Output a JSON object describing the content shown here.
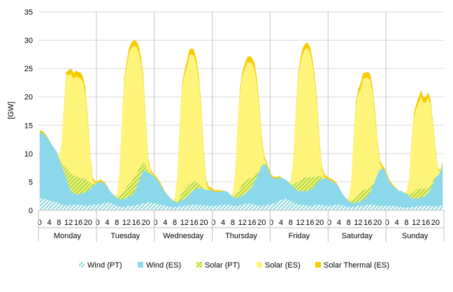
{
  "chart_data": {
    "type": "area",
    "stacked": true,
    "ylabel": "[GW]",
    "ylim": [
      0,
      35
    ],
    "yticks": [
      0,
      5,
      10,
      15,
      20,
      25,
      30,
      35
    ],
    "grid": "horizontal",
    "legend_position": "bottom",
    "days": [
      "Monday",
      "Tuesday",
      "Wednesday",
      "Thursday",
      "Friday",
      "Saturday",
      "Sunday"
    ],
    "hour_labels": [
      "0",
      "4",
      "8",
      "12",
      "16",
      "20"
    ],
    "hours_per_day": 24,
    "series": [
      {
        "name": "Wind (PT)",
        "color": "#8ad8da",
        "pattern": "hatch",
        "values": [
          2.0,
          2.1,
          2.0,
          1.9,
          1.8,
          1.6,
          1.5,
          1.4,
          1.2,
          1.0,
          0.9,
          0.8,
          0.8,
          0.9,
          1.0,
          1.0,
          1.0,
          0.9,
          0.9,
          0.8,
          0.8,
          0.9,
          1.0,
          1.0,
          1.0,
          1.1,
          1.2,
          1.3,
          1.4,
          1.3,
          1.2,
          1.0,
          0.8,
          0.7,
          0.6,
          0.6,
          0.7,
          0.8,
          0.8,
          0.8,
          0.9,
          1.0,
          1.1,
          1.2,
          1.3,
          1.4,
          1.4,
          1.3,
          1.2,
          1.1,
          1.0,
          0.9,
          0.8,
          0.7,
          0.6,
          0.6,
          0.6,
          0.6,
          0.7,
          0.8,
          0.8,
          0.9,
          0.9,
          1.0,
          1.0,
          1.0,
          0.9,
          0.9,
          0.8,
          0.8,
          0.8,
          0.8,
          0.8,
          0.8,
          0.9,
          0.9,
          1.0,
          1.0,
          1.0,
          0.9,
          0.8,
          0.8,
          0.8,
          0.9,
          1.0,
          1.1,
          1.2,
          1.2,
          1.1,
          1.0,
          0.9,
          0.8,
          0.8,
          0.8,
          0.9,
          1.0,
          1.0,
          1.2,
          1.4,
          1.6,
          1.8,
          2.0,
          2.0,
          1.8,
          1.6,
          1.4,
          1.2,
          1.0,
          1.0,
          1.0,
          0.9,
          0.8,
          0.8,
          0.8,
          0.9,
          1.0,
          1.0,
          0.9,
          0.8,
          0.8,
          0.8,
          0.8,
          0.9,
          1.0,
          1.0,
          0.9,
          0.8,
          0.7,
          0.6,
          0.6,
          0.6,
          0.7,
          0.8,
          0.8,
          0.8,
          0.9,
          1.0,
          1.0,
          1.0,
          0.9,
          0.8,
          0.8,
          0.8,
          0.8,
          0.8,
          0.8,
          0.8,
          0.8,
          0.7,
          0.6,
          0.6,
          0.5,
          0.5,
          0.5,
          0.6,
          0.6,
          0.7,
          0.7,
          0.8,
          0.8,
          0.8,
          0.8,
          0.7,
          0.7,
          0.7,
          0.7,
          0.8,
          0.8
        ]
      },
      {
        "name": "Wind (ES)",
        "color": "#8ad8ea",
        "pattern": "solid",
        "values": [
          11.8,
          11.6,
          11.4,
          11.0,
          10.5,
          10.0,
          9.5,
          9.0,
          8.0,
          7.0,
          6.0,
          5.0,
          3.5,
          2.5,
          2.0,
          1.8,
          1.8,
          2.0,
          2.2,
          2.4,
          2.6,
          2.8,
          3.2,
          3.6,
          3.8,
          4.0,
          3.8,
          3.4,
          2.8,
          2.2,
          1.8,
          1.6,
          1.4,
          1.3,
          1.3,
          1.4,
          1.5,
          1.6,
          1.8,
          2.2,
          3.0,
          4.0,
          5.0,
          5.8,
          5.6,
          5.2,
          5.0,
          4.8,
          4.6,
          4.2,
          3.6,
          3.0,
          2.4,
          2.0,
          1.6,
          1.2,
          0.9,
          0.8,
          0.8,
          1.0,
          1.2,
          1.4,
          1.8,
          2.2,
          2.6,
          2.8,
          3.0,
          3.0,
          2.9,
          2.8,
          2.8,
          2.8,
          2.6,
          2.4,
          2.4,
          2.4,
          2.4,
          2.4,
          2.2,
          1.8,
          1.6,
          1.4,
          1.4,
          1.4,
          1.6,
          1.8,
          2.0,
          2.4,
          3.0,
          4.0,
          5.0,
          6.0,
          7.0,
          7.4,
          7.0,
          6.0,
          5.0,
          4.4,
          4.2,
          4.2,
          4.0,
          3.6,
          3.4,
          3.2,
          3.0,
          2.8,
          2.6,
          2.4,
          2.4,
          2.4,
          2.5,
          2.6,
          2.8,
          3.0,
          3.4,
          3.8,
          4.2,
          4.6,
          4.8,
          4.8,
          4.6,
          4.4,
          4.0,
          3.6,
          3.0,
          2.4,
          1.8,
          1.4,
          1.0,
          0.8,
          0.7,
          0.6,
          0.6,
          0.8,
          1.0,
          1.2,
          1.6,
          2.2,
          3.2,
          4.4,
          5.6,
          6.4,
          6.6,
          6.2,
          5.2,
          4.2,
          3.6,
          3.2,
          3.0,
          2.8,
          2.8,
          2.6,
          2.4,
          2.0,
          1.6,
          1.4,
          1.4,
          1.4,
          1.4,
          1.6,
          1.8,
          2.2,
          3.0,
          4.0,
          5.0,
          5.4,
          6.0,
          7.4
        ]
      },
      {
        "name": "Solar (PT)",
        "color": "#c8e87a",
        "pattern": "hatch",
        "values": [
          0,
          0,
          0,
          0,
          0,
          0,
          0,
          0,
          0.1,
          0.4,
          1.0,
          2.0,
          2.6,
          3.0,
          3.2,
          3.2,
          3.0,
          2.8,
          2.6,
          2.3,
          1.8,
          1.2,
          0.5,
          0.1,
          0,
          0,
          0,
          0,
          0,
          0,
          0,
          0,
          0.1,
          0.4,
          1.0,
          1.6,
          2.0,
          2.2,
          2.4,
          2.6,
          2.4,
          2.2,
          2.0,
          1.6,
          1.0,
          0.4,
          0.1,
          0,
          0,
          0,
          0,
          0,
          0,
          0,
          0,
          0,
          0.1,
          0.3,
          0.8,
          1.4,
          1.8,
          2.0,
          2.0,
          1.8,
          1.6,
          1.2,
          0.8,
          0.4,
          0.1,
          0,
          0,
          0,
          0,
          0,
          0,
          0,
          0,
          0,
          0,
          0,
          0.1,
          0.4,
          1.0,
          1.6,
          2.0,
          2.2,
          2.2,
          2.0,
          1.8,
          1.4,
          0.9,
          0.4,
          0.1,
          0,
          0,
          0,
          0,
          0,
          0,
          0,
          0,
          0,
          0,
          0,
          0.1,
          0.4,
          1.0,
          1.6,
          2.0,
          2.2,
          2.4,
          2.4,
          2.2,
          2.0,
          1.6,
          1.2,
          0.8,
          0.4,
          0.1,
          0,
          0,
          0,
          0,
          0,
          0,
          0,
          0,
          0,
          0.1,
          0.3,
          0.7,
          1.2,
          1.6,
          1.8,
          1.8,
          1.6,
          1.2,
          0.8,
          0.4,
          0.1,
          0,
          0,
          0,
          0,
          0,
          0,
          0,
          0,
          0,
          0,
          0,
          0,
          0.1,
          0.3,
          0.7,
          1.2,
          1.6,
          1.6,
          1.6,
          1.4,
          1.2,
          1.0,
          0.9,
          0.6,
          0.3,
          0.1,
          0,
          0.1
        ]
      },
      {
        "name": "Solar (ES)",
        "color": "#fff47a",
        "pattern": "solid",
        "values": [
          0,
          0,
          0,
          0,
          0,
          0,
          0,
          0,
          0.3,
          3.0,
          10.0,
          16.0,
          17.0,
          17.6,
          17.0,
          17.6,
          17.6,
          17.6,
          16.8,
          15.0,
          10.0,
          4.0,
          0.6,
          0,
          0,
          0,
          0,
          0,
          0,
          0,
          0,
          0,
          0.6,
          4.0,
          12.0,
          19.0,
          21.0,
          23.0,
          23.6,
          23.4,
          22.6,
          20.8,
          18.0,
          14.0,
          7.0,
          1.6,
          0.2,
          0,
          0,
          0,
          0,
          0,
          0,
          0,
          0,
          0,
          0.5,
          4.0,
          12.5,
          18.5,
          20.0,
          21.0,
          22.6,
          22.6,
          22.0,
          20.6,
          18.0,
          13.0,
          6.0,
          1.2,
          0.1,
          0,
          0,
          0,
          0,
          0,
          0,
          0,
          0,
          0,
          0.5,
          4.0,
          11.5,
          17.0,
          19.0,
          19.8,
          20.6,
          20.6,
          20.0,
          18.6,
          15.6,
          10.6,
          4.6,
          1.0,
          0.1,
          0,
          0,
          0,
          0,
          0,
          0,
          0,
          0,
          0,
          0.5,
          4.0,
          12.0,
          18.0,
          20.6,
          22.0,
          22.6,
          22.8,
          22.0,
          20.0,
          16.8,
          12.0,
          5.6,
          1.2,
          0.1,
          0,
          0,
          0,
          0,
          0,
          0,
          0,
          0,
          0,
          0.4,
          3.0,
          10.0,
          16.0,
          17.6,
          18.0,
          19.6,
          19.6,
          19.6,
          19.0,
          16.0,
          11.0,
          5.0,
          1.0,
          0,
          0,
          0,
          0,
          0,
          0,
          0,
          0,
          0,
          0,
          0.3,
          2.5,
          8.6,
          13.2,
          14.2,
          15.2,
          16.2,
          15.2,
          15.2,
          15.8,
          14.0,
          9.6,
          4.6,
          1.0,
          0,
          0
        ]
      },
      {
        "name": "Solar Thermal (ES)",
        "color": "#f5cc00",
        "pattern": "solid",
        "values": [
          0.3,
          0.3,
          0.3,
          0.2,
          0.1,
          0,
          0,
          0,
          0,
          0.1,
          0.3,
          0.6,
          0.8,
          1.0,
          1.0,
          1.0,
          1.0,
          1.0,
          1.0,
          1.0,
          1.0,
          0.6,
          0.5,
          0.4,
          0.3,
          0.3,
          0.3,
          0.2,
          0.1,
          0,
          0,
          0,
          0,
          0.1,
          0.3,
          0.6,
          0.8,
          1.0,
          1.0,
          1.0,
          1.0,
          1.0,
          1.0,
          1.0,
          0.8,
          0.6,
          0.5,
          0.4,
          0.3,
          0.3,
          0.3,
          0.2,
          0.1,
          0,
          0,
          0,
          0,
          0.1,
          0.3,
          0.6,
          0.8,
          1.0,
          1.0,
          1.0,
          1.0,
          1.0,
          1.0,
          1.0,
          0.8,
          0.6,
          0.5,
          0.4,
          0.3,
          0.3,
          0.3,
          0.2,
          0.1,
          0,
          0,
          0,
          0,
          0.1,
          0.3,
          0.6,
          0.8,
          1.0,
          1.0,
          1.0,
          1.0,
          1.0,
          1.0,
          1.0,
          0.8,
          0.6,
          0.5,
          0.4,
          0.3,
          0.3,
          0.3,
          0.2,
          0.1,
          0,
          0,
          0,
          0,
          0.1,
          0.3,
          0.6,
          0.8,
          1.0,
          1.0,
          1.0,
          1.0,
          1.0,
          1.0,
          1.0,
          0.8,
          0.6,
          0.5,
          0.4,
          0.3,
          0.3,
          0.3,
          0.2,
          0.1,
          0,
          0,
          0,
          0,
          0.1,
          0.3,
          0.6,
          0.8,
          1.0,
          1.0,
          1.0,
          1.0,
          1.0,
          1.0,
          1.0,
          0.8,
          0.6,
          0.5,
          0.4,
          0.3,
          0.3,
          0.3,
          0.2,
          0.1,
          0,
          0,
          0,
          0,
          0.1,
          0.3,
          0.6,
          0.8,
          1.0,
          1.2,
          1.0,
          1.0,
          1.0,
          0.8,
          0.6,
          0.5,
          0.3,
          0.3,
          0.3
        ]
      }
    ]
  }
}
